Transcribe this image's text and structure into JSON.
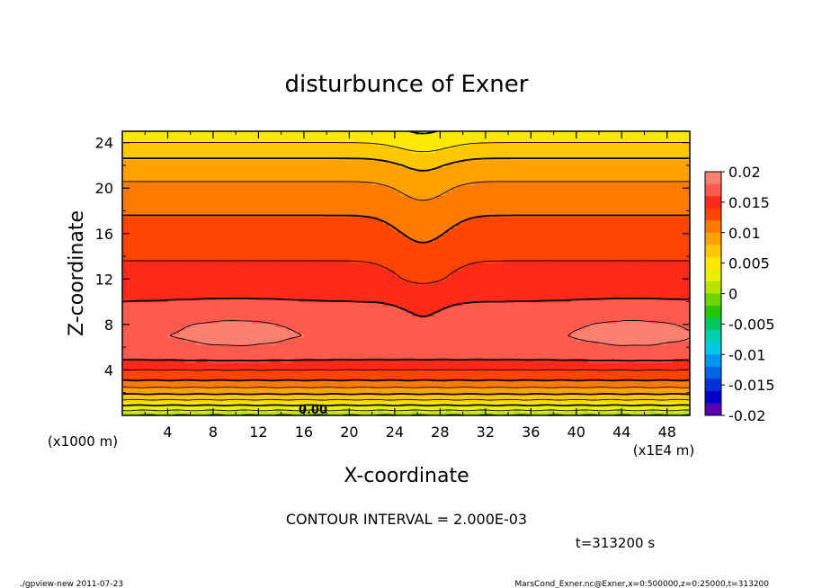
{
  "chart_data": {
    "type": "heatmap",
    "title": "disturbunce of Exner",
    "xlabel": "X-coordinate",
    "ylabel": "Z-coordinate",
    "x_unit": "(x1E4 m)",
    "y_unit": "(x1000 m)",
    "xlim": [
      0,
      50
    ],
    "ylim": [
      0,
      25
    ],
    "x_ticks": [
      4,
      8,
      12,
      16,
      20,
      24,
      28,
      32,
      36,
      40,
      44,
      48
    ],
    "y_ticks": [
      4,
      8,
      12,
      16,
      20,
      24
    ],
    "colorbar": {
      "min": -0.02,
      "max": 0.02,
      "labels": [
        "0.02",
        "0.015",
        "0.01",
        "0.005",
        "0",
        "-0.005",
        "-0.01",
        "-0.015",
        "-0.02"
      ],
      "colors": [
        "#fa8072",
        "#ff5a4e",
        "#ff2a1a",
        "#ff4500",
        "#ff7a00",
        "#ffa200",
        "#ffc800",
        "#ffe800",
        "#e8f000",
        "#b4e400",
        "#6cd400",
        "#22c800",
        "#00c860",
        "#00d0b0",
        "#00c8e6",
        "#0096f0",
        "#0064e6",
        "#0032dc",
        "#0000c8",
        "#5a00b4"
      ]
    },
    "profile": {
      "z": [
        0,
        1,
        2,
        3,
        4,
        5,
        6,
        7,
        8,
        9,
        10,
        12,
        14,
        16,
        18,
        20,
        22,
        23,
        24,
        25
      ],
      "value": [
        0.0,
        0.0045,
        0.0085,
        0.0118,
        0.014,
        0.0162,
        0.0172,
        0.0175,
        0.0172,
        0.0166,
        0.016,
        0.0148,
        0.0138,
        0.0128,
        0.0118,
        0.0105,
        0.0088,
        0.0075,
        0.006,
        0.005
      ]
    },
    "contour_label": "0.00",
    "contour_interval_text": "CONTOUR INTERVAL = 2.000E-03",
    "time_text": "t=313200 s"
  },
  "footer": {
    "left": "./gpview-new  2011-07-23",
    "right": "MarsCond_Exner.nc@Exner,x=0:500000,z=0:25000,t=313200"
  }
}
